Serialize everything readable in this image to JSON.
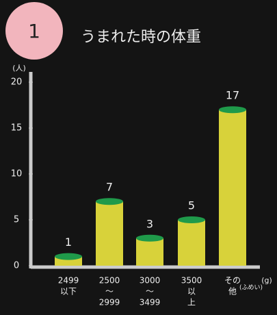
{
  "chart_data": {
    "type": "bar",
    "badge": "1",
    "title": "うまれた時の体重",
    "y_unit": "(人)",
    "x_unit": "(g)",
    "categories": [
      [
        "2499",
        "以下"
      ],
      [
        "2500",
        "〜",
        "2999"
      ],
      [
        "3000",
        "〜",
        "3499"
      ],
      [
        "3500",
        "以",
        "上"
      ],
      [
        "その",
        "他"
      ]
    ],
    "category_note": "(ふめい)",
    "values": [
      1,
      7,
      3,
      5,
      17
    ],
    "color": "#d8d23a",
    "top_color": "#1f9a4a",
    "ylim": [
      0,
      20
    ],
    "yticks": [
      0,
      5,
      10,
      15,
      20
    ]
  }
}
